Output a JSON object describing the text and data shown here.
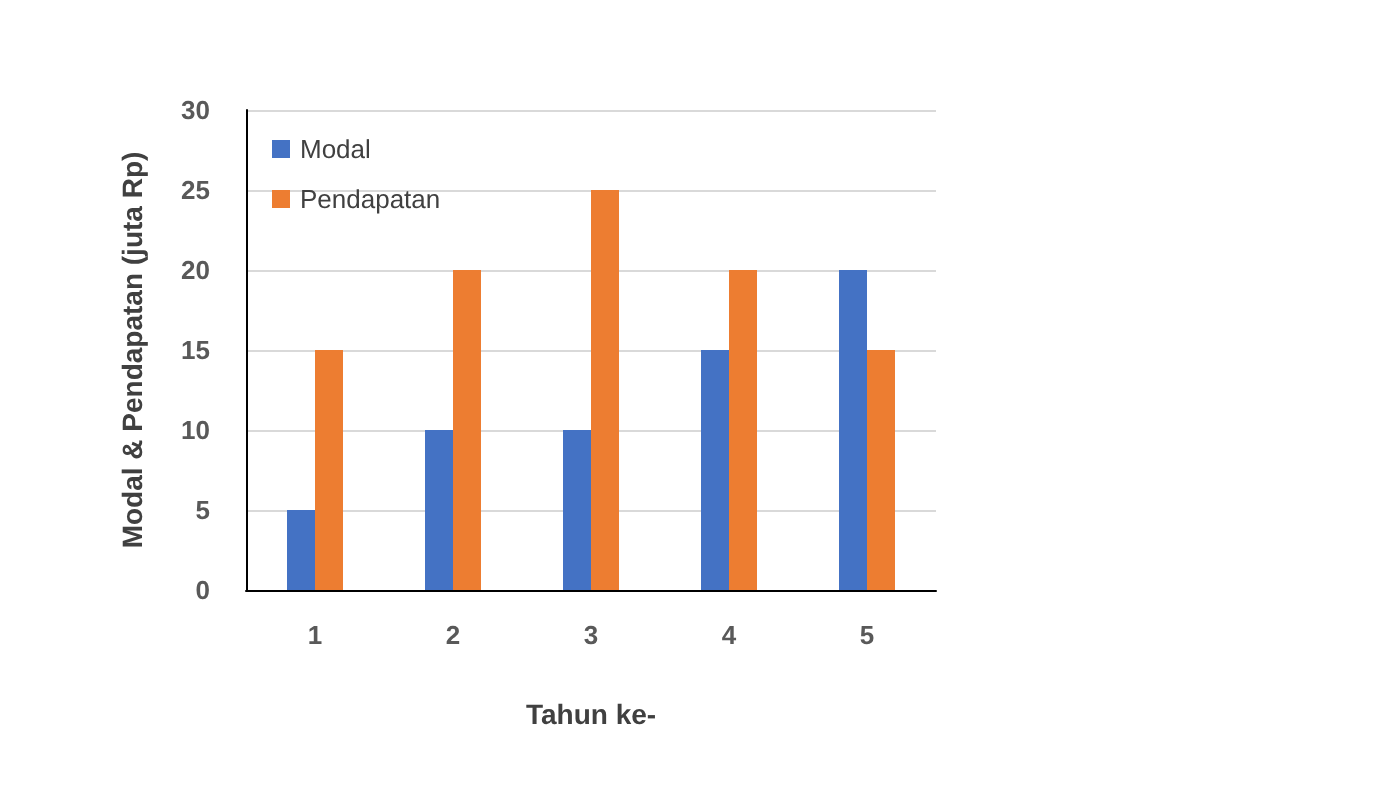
{
  "chart_data": {
    "type": "bar",
    "xlabel": "Tahun ke-",
    "ylabel": "Modal & Pendapatan (juta Rp)",
    "categories": [
      "1",
      "2",
      "3",
      "4",
      "5"
    ],
    "series": [
      {
        "name": "Modal",
        "color": "#4472c4",
        "values": [
          5,
          10,
          10,
          15,
          20
        ]
      },
      {
        "name": "Pendapatan",
        "color": "#ed7d31",
        "values": [
          15,
          20,
          25,
          20,
          15
        ]
      }
    ],
    "ylim": [
      0,
      30
    ],
    "yticks": [
      0,
      5,
      10,
      15,
      20,
      25,
      30
    ],
    "grid": "y",
    "legend": "top left"
  }
}
